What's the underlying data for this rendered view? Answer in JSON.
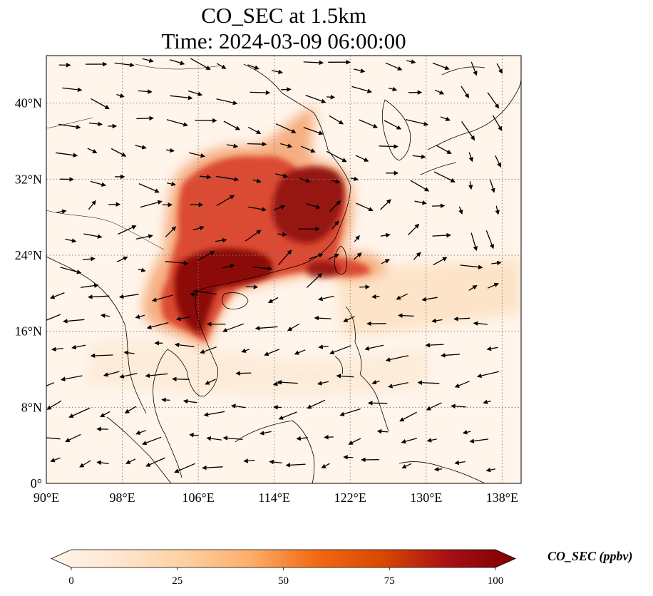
{
  "title": {
    "line1": "CO_SEC at 1.5km",
    "line2": "Time: 2024-03-09 06:00:00"
  },
  "map": {
    "projection": "PlateCarree",
    "lon_range": [
      90,
      140
    ],
    "lat_range": [
      0,
      45
    ],
    "lon_ticks": [
      90,
      98,
      106,
      114,
      122,
      130,
      138
    ],
    "lat_ticks": [
      0,
      8,
      16,
      24,
      32,
      40
    ],
    "lon_tick_labels": [
      "90°E",
      "98°E",
      "106°E",
      "114°E",
      "122°E",
      "130°E",
      "138°E"
    ],
    "lat_tick_labels": [
      "0°",
      "8°N",
      "16°N",
      "24°N",
      "32°N",
      "40°N"
    ],
    "gridlines": true,
    "gridline_style": "dotted",
    "gridline_color": "#7f7f7f",
    "coastlines": true,
    "wind_vectors": true,
    "background_color": "#fff5eb"
  },
  "colorbar": {
    "colormap": "OrRd",
    "min": 0,
    "max": 100,
    "ticks": [
      0,
      25,
      50,
      75,
      100
    ],
    "tick_labels": [
      "0",
      "25",
      "50",
      "75",
      "100"
    ],
    "extend": "both",
    "orientation": "horizontal",
    "label": "CO_SEC (ppbv)",
    "stops": [
      "#fff5eb",
      "#fee6ce",
      "#fdd0a2",
      "#fdae6b",
      "#f16913",
      "#d94801",
      "#a50f15",
      "#7f0000"
    ]
  }
}
